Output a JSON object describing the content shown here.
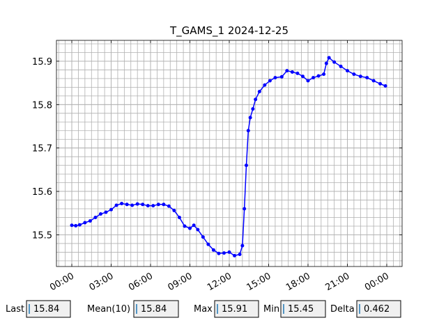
{
  "chart_data": {
    "type": "line",
    "title": "T_GAMS_1 2024-12-25",
    "x": [
      0,
      0.3,
      0.6,
      1.0,
      1.4,
      1.8,
      2.2,
      2.6,
      3.0,
      3.4,
      3.8,
      4.2,
      4.6,
      5.0,
      5.4,
      5.8,
      6.2,
      6.6,
      7.0,
      7.4,
      7.8,
      8.2,
      8.6,
      9.0,
      9.3,
      9.6,
      10.0,
      10.4,
      10.8,
      11.2,
      11.6,
      12.0,
      12.4,
      12.8,
      13.0,
      13.15,
      13.3,
      13.45,
      13.6,
      13.8,
      14.0,
      14.3,
      14.7,
      15.1,
      15.5,
      16.0,
      16.4,
      16.8,
      17.2,
      17.6,
      18.0,
      18.4,
      18.8,
      19.2,
      19.4,
      19.6,
      20.0,
      20.5,
      21.0,
      21.5,
      22.0,
      22.5,
      23.0,
      23.5,
      23.9
    ],
    "series": [
      {
        "color": "#0000ff",
        "values": [
          15.522,
          15.521,
          15.523,
          15.528,
          15.532,
          15.54,
          15.548,
          15.552,
          15.558,
          15.568,
          15.572,
          15.57,
          15.568,
          15.571,
          15.57,
          15.567,
          15.567,
          15.57,
          15.57,
          15.566,
          15.556,
          15.54,
          15.52,
          15.515,
          15.522,
          15.512,
          15.495,
          15.478,
          15.465,
          15.457,
          15.458,
          15.46,
          15.452,
          15.455,
          15.475,
          15.56,
          15.66,
          15.74,
          15.77,
          15.79,
          15.812,
          15.83,
          15.845,
          15.855,
          15.862,
          15.864,
          15.878,
          15.875,
          15.872,
          15.865,
          15.855,
          15.862,
          15.866,
          15.87,
          15.895,
          15.908,
          15.898,
          15.888,
          15.878,
          15.87,
          15.865,
          15.862,
          15.855,
          15.848,
          15.843
        ]
      }
    ],
    "xlim": [
      -1.17,
      25.17
    ],
    "xticks": [
      {
        "value": 0,
        "label": "00:00"
      },
      {
        "value": 3,
        "label": "03:00"
      },
      {
        "value": 6,
        "label": "06:00"
      },
      {
        "value": 9,
        "label": "09:00"
      },
      {
        "value": 12,
        "label": "12:00"
      },
      {
        "value": 15,
        "label": "15:00"
      },
      {
        "value": 18,
        "label": "18:00"
      },
      {
        "value": 21,
        "label": "21:00"
      },
      {
        "value": 24,
        "label": "00:00"
      }
    ],
    "ylim": [
      15.427,
      15.948
    ],
    "yticks": [
      15.5,
      15.6,
      15.7,
      15.8,
      15.9
    ],
    "grid": true,
    "xminor": 0.5,
    "yminor": 0.02
  },
  "stats": [
    {
      "label": "Last",
      "value": 15.84
    },
    {
      "label": "Mean(10)",
      "value": 15.84
    },
    {
      "label": "Max",
      "value": 15.91
    },
    {
      "label": "Min",
      "value": 15.45
    },
    {
      "label": "Delta",
      "value": 0.462
    }
  ]
}
